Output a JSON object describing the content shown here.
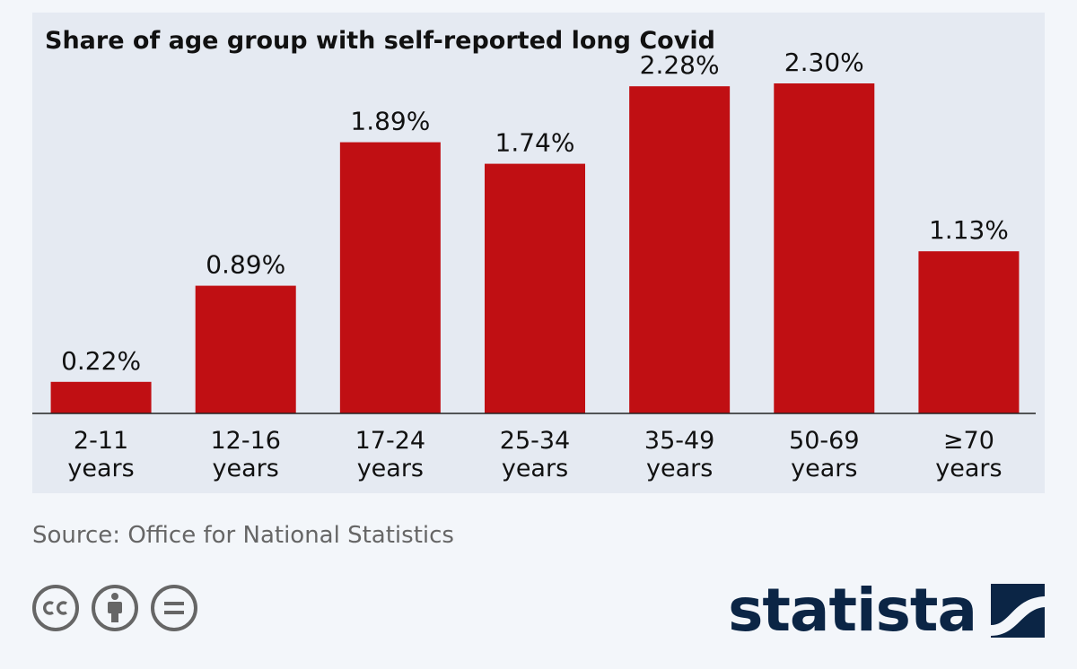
{
  "chart_data": {
    "type": "bar",
    "title": "Share of age group with self-reported long Covid",
    "categories": [
      [
        "2-11",
        "years"
      ],
      [
        "12-16",
        "years"
      ],
      [
        "17-24",
        "years"
      ],
      [
        "25-34",
        "years"
      ],
      [
        "35-49",
        "years"
      ],
      [
        "50-69",
        "years"
      ],
      [
        "≥70",
        "years"
      ]
    ],
    "values": [
      0.22,
      0.89,
      1.89,
      1.74,
      2.28,
      2.3,
      1.13
    ],
    "value_labels": [
      "0.22%",
      "0.89%",
      "1.89%",
      "1.74%",
      "2.28%",
      "2.30%",
      "1.13%"
    ],
    "unit": "%",
    "ylim": [
      0,
      2.5
    ],
    "grid": false,
    "legend": "none",
    "bar_color": "#c00f13"
  },
  "source": "Source: Office for National Statistics",
  "license_icons": [
    "cc-icon",
    "attribution-icon",
    "no-derivatives-icon"
  ],
  "brand": {
    "wordmark": "statista",
    "color": "#0b2545"
  }
}
